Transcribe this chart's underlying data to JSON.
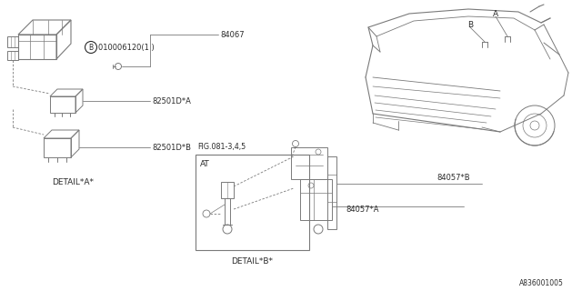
{
  "bg_color": "#ffffff",
  "diagram_code": "A836001005",
  "lc": "#7a7a7a",
  "tc": "#2a2a2a",
  "parts": {
    "detail_a_label": "DETAIL*A*",
    "detail_b_label": "DETAIL*B*",
    "fig_label": "FIG.081-3,4,5",
    "at_label": "AT",
    "part_84067": "84067",
    "part_82501DA": "82501D*A",
    "part_82501DB": "82501D*B",
    "part_84057A": "84057*A",
    "part_84057B": "84057*B",
    "label_010006120": "010006120(1 )",
    "label_A": "A",
    "label_B": "B"
  }
}
